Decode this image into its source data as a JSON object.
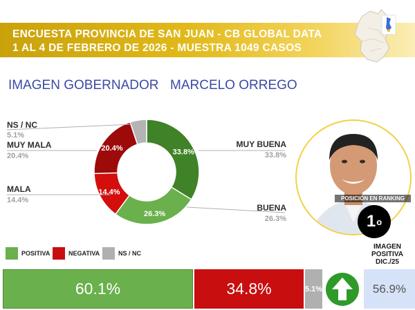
{
  "header": {
    "line1": "ENCUESTA PROVINCIA DE SAN JUAN - CB GLOBAL DATA",
    "line2": "1 AL 4 DE FEBRERO DE 2026 - MUESTRA 1049 CASOS"
  },
  "title": {
    "part1": "IMAGEN GOBERNADOR",
    "part2": "MARCELO ORREGO"
  },
  "chart_data": {
    "type": "pie",
    "title": "IMAGEN GOBERNADOR MARCELO ORREGO",
    "categories": [
      "MUY BUENA",
      "BUENA",
      "MALA",
      "MUY MALA",
      "NS / NC"
    ],
    "values": [
      33.8,
      26.3,
      14.4,
      20.4,
      5.1
    ],
    "value_labels": [
      "33.8%",
      "26.3%",
      "14.4%",
      "20.4%",
      "5.1%"
    ],
    "side_values": [
      "33.8%",
      "26.3%",
      "14.4%",
      "20.4%",
      "5.1%"
    ],
    "colors": [
      "#3f8227",
      "#6ab04c",
      "#d40d0d",
      "#9d0a0a",
      "#b4b4b4"
    ],
    "donut": true
  },
  "legend": {
    "positive": "POSITIVA",
    "negative": "NEGATIVA",
    "nsnc": "NS / NC",
    "colors": {
      "positive": "#6ab04c",
      "negative": "#c80e0e",
      "nsnc": "#b0b0b0"
    }
  },
  "summary": {
    "positive": 60.1,
    "negative": 34.8,
    "nsnc": 5.1,
    "positive_label": "60.1%",
    "negative_label": "34.8%",
    "nsnc_label": "5.1%"
  },
  "ranking": {
    "label": "POSICIÓN EN RANKING",
    "number": "1",
    "suffix": "o"
  },
  "previous": {
    "label_line1": "IMAGEN",
    "label_line2": "POSITIVA",
    "label_line3": "DIC./25",
    "value": "56.9%",
    "trend_icon": "arrow-up-icon"
  }
}
